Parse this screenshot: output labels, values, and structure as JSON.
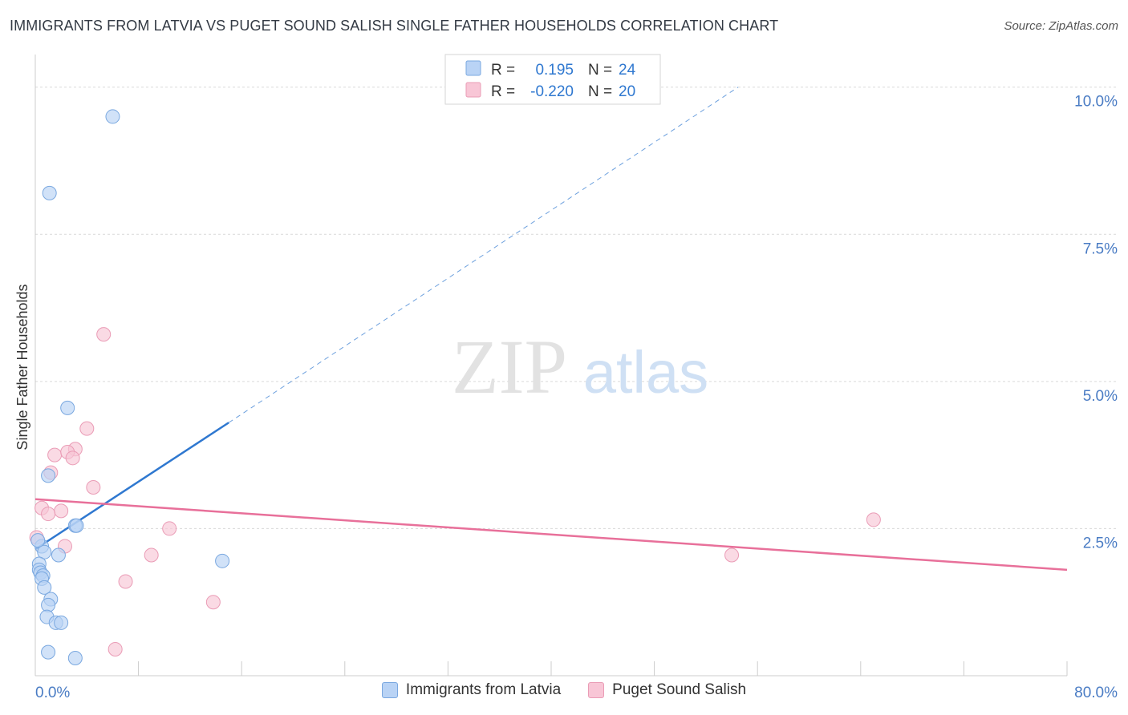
{
  "title": "IMMIGRANTS FROM LATVIA VS PUGET SOUND SALISH SINGLE FATHER HOUSEHOLDS CORRELATION CHART",
  "source": "Source: ZipAtlas.com",
  "watermark": {
    "zip": "ZIP",
    "atlas": "atlas"
  },
  "colors": {
    "blue_fill": "#b9d3f5",
    "blue_stroke": "#7aa8e0",
    "blue_line": "#2f78d0",
    "pink_fill": "#f8c6d6",
    "pink_stroke": "#ea9cb6",
    "pink_line": "#e8709a",
    "axis_text": "#4a7cc4"
  },
  "stats_legend": [
    {
      "r_label": "R =",
      "r_value": "0.195",
      "n_label": "N =",
      "n_value": "24"
    },
    {
      "r_label": "R =",
      "r_value": "-0.220",
      "n_label": "N =",
      "n_value": "20"
    }
  ],
  "chart_data": {
    "type": "scatter",
    "ylabel": "Single Father Households",
    "xlim": [
      0,
      80
    ],
    "ylim": [
      0,
      10.5
    ],
    "x_tick_labels": [
      "0.0%",
      "80.0%"
    ],
    "y_ticks": [
      2.5,
      5.0,
      7.5,
      10.0
    ],
    "y_tick_labels": [
      "2.5%",
      "5.0%",
      "7.5%",
      "10.0%"
    ],
    "grid": true,
    "legend_position": "bottom",
    "series": [
      {
        "name": "Immigrants from Latvia",
        "points": [
          [
            6.0,
            9.5
          ],
          [
            1.1,
            8.2
          ],
          [
            2.5,
            4.55
          ],
          [
            1.0,
            3.4
          ],
          [
            3.1,
            2.55
          ],
          [
            3.2,
            2.55
          ],
          [
            0.5,
            2.2
          ],
          [
            0.7,
            2.1
          ],
          [
            1.8,
            2.05
          ],
          [
            0.3,
            1.9
          ],
          [
            0.3,
            1.8
          ],
          [
            0.4,
            1.75
          ],
          [
            0.6,
            1.7
          ],
          [
            0.5,
            1.65
          ],
          [
            0.7,
            1.5
          ],
          [
            1.2,
            1.3
          ],
          [
            1.0,
            1.2
          ],
          [
            0.9,
            1.0
          ],
          [
            1.6,
            0.9
          ],
          [
            2.0,
            0.9
          ],
          [
            14.5,
            1.95
          ],
          [
            1.0,
            0.4
          ],
          [
            3.1,
            0.3
          ],
          [
            0.2,
            2.3
          ]
        ],
        "trend": {
          "x": [
            0,
            15
          ],
          "y": [
            2.15,
            4.3
          ]
        },
        "trend_extension": {
          "x": [
            15,
            54.5
          ],
          "y": [
            4.3,
            10.0
          ]
        }
      },
      {
        "name": "Puget Sound Salish",
        "points": [
          [
            5.3,
            5.8
          ],
          [
            4.0,
            4.2
          ],
          [
            3.1,
            3.85
          ],
          [
            1.5,
            3.75
          ],
          [
            2.5,
            3.8
          ],
          [
            2.9,
            3.7
          ],
          [
            1.2,
            3.45
          ],
          [
            4.5,
            3.2
          ],
          [
            0.5,
            2.85
          ],
          [
            2.0,
            2.8
          ],
          [
            1.0,
            2.75
          ],
          [
            10.4,
            2.5
          ],
          [
            0.1,
            2.35
          ],
          [
            2.3,
            2.2
          ],
          [
            9.0,
            2.05
          ],
          [
            7.0,
            1.6
          ],
          [
            13.8,
            1.25
          ],
          [
            6.2,
            0.45
          ],
          [
            54.0,
            2.05
          ],
          [
            65.0,
            2.65
          ]
        ],
        "trend": {
          "x": [
            0,
            80
          ],
          "y": [
            3.0,
            1.8
          ]
        }
      }
    ]
  }
}
